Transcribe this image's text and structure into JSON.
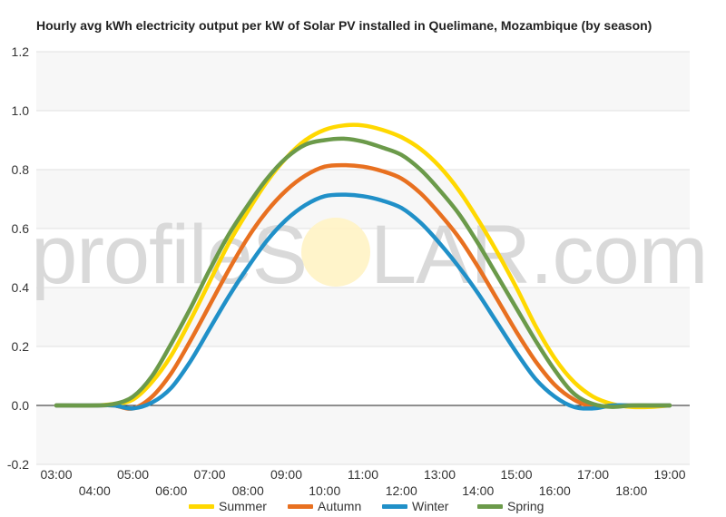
{
  "chart_data": {
    "type": "line",
    "title": "Hourly avg kWh electricity output per kW of Solar PV installed in Quelimane, Mozambique (by season)",
    "xlabel": "",
    "ylabel": "",
    "x_ticks": [
      "03:00",
      "04:00",
      "05:00",
      "06:00",
      "07:00",
      "08:00",
      "09:00",
      "10:00",
      "11:00",
      "12:00",
      "13:00",
      "14:00",
      "15:00",
      "16:00",
      "17:00",
      "18:00",
      "19:00"
    ],
    "y_ticks": [
      "-0.2",
      "0.0",
      "0.2",
      "0.4",
      "0.6",
      "0.8",
      "1.0",
      "1.2"
    ],
    "ylim": [
      -0.2,
      1.2
    ],
    "xlim": [
      3,
      19
    ],
    "grid": true,
    "legend_position": "bottom",
    "watermark": {
      "left": "profileS",
      "right": "LAR.com"
    },
    "series": [
      {
        "name": "Summer",
        "color": "#FFD800",
        "x": [
          3,
          4,
          4.5,
          5,
          5.5,
          6,
          6.5,
          7,
          7.5,
          8,
          8.5,
          9,
          9.5,
          10,
          10.5,
          11,
          11.5,
          12,
          12.5,
          13,
          13.5,
          14,
          14.5,
          15,
          15.5,
          16,
          16.5,
          17,
          17.5,
          18,
          18.5,
          19
        ],
        "values": [
          0,
          0,
          0.005,
          0.02,
          0.08,
          0.17,
          0.29,
          0.42,
          0.55,
          0.66,
          0.76,
          0.84,
          0.9,
          0.935,
          0.95,
          0.95,
          0.935,
          0.91,
          0.87,
          0.81,
          0.73,
          0.63,
          0.52,
          0.4,
          0.27,
          0.16,
          0.08,
          0.03,
          0.005,
          -0.005,
          -0.005,
          0
        ]
      },
      {
        "name": "Autumn",
        "color": "#E87020",
        "x": [
          3,
          4,
          4.5,
          5,
          5.5,
          6,
          6.5,
          7,
          7.5,
          8,
          8.5,
          9,
          9.5,
          10,
          10.5,
          11,
          11.5,
          12,
          12.5,
          13,
          13.5,
          14,
          14.5,
          15,
          15.5,
          16,
          16.5,
          17,
          17.5,
          18,
          18.5,
          19
        ],
        "values": [
          0,
          0,
          0,
          -0.01,
          0.03,
          0.11,
          0.22,
          0.34,
          0.46,
          0.57,
          0.66,
          0.73,
          0.78,
          0.81,
          0.815,
          0.81,
          0.795,
          0.77,
          0.72,
          0.65,
          0.57,
          0.47,
          0.36,
          0.25,
          0.15,
          0.07,
          0.02,
          -0.005,
          0,
          0,
          0,
          0
        ]
      },
      {
        "name": "Winter",
        "color": "#2090C8",
        "x": [
          3,
          4,
          4.5,
          5,
          5.5,
          6,
          6.5,
          7,
          7.5,
          8,
          8.5,
          9,
          9.5,
          10,
          10.5,
          11,
          11.5,
          12,
          12.5,
          13,
          13.5,
          14,
          14.5,
          15,
          15.5,
          16,
          16.5,
          17,
          17.5,
          18,
          18.5,
          19
        ],
        "values": [
          0,
          0,
          0,
          -0.01,
          0.01,
          0.06,
          0.15,
          0.26,
          0.37,
          0.47,
          0.56,
          0.63,
          0.68,
          0.71,
          0.715,
          0.71,
          0.695,
          0.67,
          0.62,
          0.55,
          0.47,
          0.38,
          0.28,
          0.18,
          0.09,
          0.03,
          -0.005,
          -0.01,
          0,
          0,
          0,
          0
        ]
      },
      {
        "name": "Spring",
        "color": "#6B9A4A",
        "x": [
          3,
          4,
          4.5,
          5,
          5.5,
          6,
          6.5,
          7,
          7.5,
          8,
          8.5,
          9,
          9.5,
          10,
          10.5,
          11,
          11.5,
          12,
          12.5,
          13,
          13.5,
          14,
          14.5,
          15,
          15.5,
          16,
          16.5,
          17,
          17.5,
          18,
          18.5,
          19
        ],
        "values": [
          0,
          0,
          0.005,
          0.03,
          0.1,
          0.21,
          0.33,
          0.46,
          0.58,
          0.68,
          0.77,
          0.84,
          0.885,
          0.9,
          0.905,
          0.895,
          0.875,
          0.85,
          0.8,
          0.73,
          0.65,
          0.55,
          0.44,
          0.33,
          0.22,
          0.12,
          0.04,
          0.005,
          -0.005,
          0,
          0,
          0
        ]
      }
    ]
  }
}
